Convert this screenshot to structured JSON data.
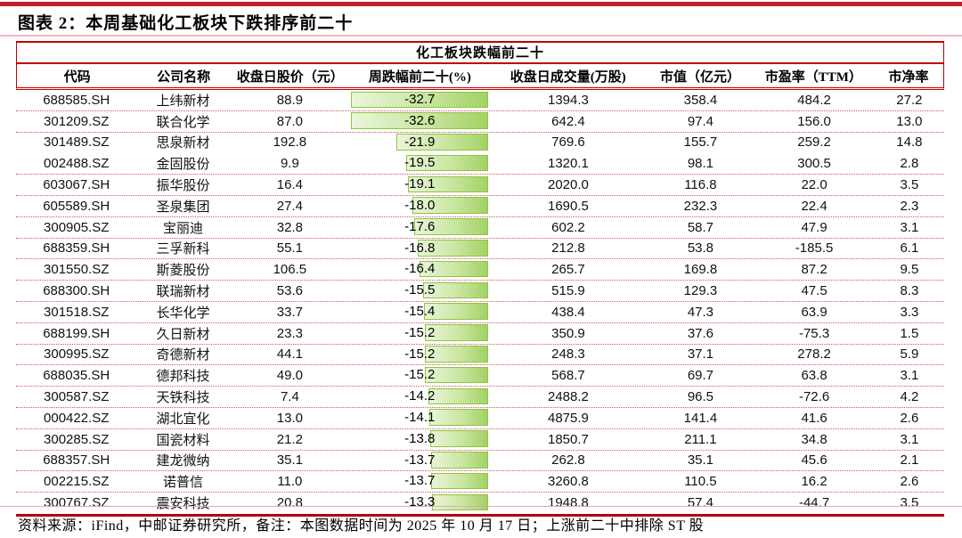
{
  "figure": {
    "title": "图表 2：本周基础化工板块下跌排序前二十",
    "footer": "资料来源：iFind，中邮证券研究所，备注：本图数据时间为 2025 年 10 月 17 日；上涨前二十中排除 ST 股"
  },
  "table": {
    "band_title": "化工板块跌幅前二十",
    "columns": [
      "代码",
      "公司名称",
      "收盘日股价（元）",
      "周跌幅前二十(%)",
      "收盘日成交量(万股)",
      "市值（亿元）",
      "市盈率（TTM）",
      "市净率"
    ],
    "bar_max_abs_decline": 32.7,
    "rows": [
      {
        "code": "688585.SH",
        "name": "上纬新材",
        "price": "88.9",
        "decline": "-32.7",
        "volume": "1394.3",
        "mktcap": "358.4",
        "pe": "484.2",
        "pb": "27.2"
      },
      {
        "code": "301209.SZ",
        "name": "联合化学",
        "price": "87.0",
        "decline": "-32.6",
        "volume": "642.4",
        "mktcap": "97.4",
        "pe": "156.0",
        "pb": "13.0"
      },
      {
        "code": "301489.SZ",
        "name": "思泉新材",
        "price": "192.8",
        "decline": "-21.9",
        "volume": "769.6",
        "mktcap": "155.7",
        "pe": "259.2",
        "pb": "14.8"
      },
      {
        "code": "002488.SZ",
        "name": "金固股份",
        "price": "9.9",
        "decline": "-19.5",
        "volume": "1320.1",
        "mktcap": "98.1",
        "pe": "300.5",
        "pb": "2.8"
      },
      {
        "code": "603067.SH",
        "name": "振华股份",
        "price": "16.4",
        "decline": "-19.1",
        "volume": "2020.0",
        "mktcap": "116.8",
        "pe": "22.0",
        "pb": "3.5"
      },
      {
        "code": "605589.SH",
        "name": "圣泉集团",
        "price": "27.4",
        "decline": "-18.0",
        "volume": "1690.5",
        "mktcap": "232.3",
        "pe": "22.4",
        "pb": "2.3"
      },
      {
        "code": "300905.SZ",
        "name": "宝丽迪",
        "price": "32.8",
        "decline": "-17.6",
        "volume": "602.2",
        "mktcap": "58.7",
        "pe": "47.9",
        "pb": "3.1"
      },
      {
        "code": "688359.SH",
        "name": "三孚新科",
        "price": "55.1",
        "decline": "-16.8",
        "volume": "212.8",
        "mktcap": "53.8",
        "pe": "-185.5",
        "pb": "6.1"
      },
      {
        "code": "301550.SZ",
        "name": "斯菱股份",
        "price": "106.5",
        "decline": "-16.4",
        "volume": "265.7",
        "mktcap": "169.8",
        "pe": "87.2",
        "pb": "9.5"
      },
      {
        "code": "688300.SH",
        "name": "联瑞新材",
        "price": "53.6",
        "decline": "-15.5",
        "volume": "515.9",
        "mktcap": "129.3",
        "pe": "47.5",
        "pb": "8.3"
      },
      {
        "code": "301518.SZ",
        "name": "长华化学",
        "price": "33.7",
        "decline": "-15.4",
        "volume": "438.4",
        "mktcap": "47.3",
        "pe": "63.9",
        "pb": "3.3"
      },
      {
        "code": "688199.SH",
        "name": "久日新材",
        "price": "23.3",
        "decline": "-15.2",
        "volume": "350.9",
        "mktcap": "37.6",
        "pe": "-75.3",
        "pb": "1.5"
      },
      {
        "code": "300995.SZ",
        "name": "奇德新材",
        "price": "44.1",
        "decline": "-15.2",
        "volume": "248.3",
        "mktcap": "37.1",
        "pe": "278.2",
        "pb": "5.9"
      },
      {
        "code": "688035.SH",
        "name": "德邦科技",
        "price": "49.0",
        "decline": "-15.2",
        "volume": "568.7",
        "mktcap": "69.7",
        "pe": "63.8",
        "pb": "3.1"
      },
      {
        "code": "300587.SZ",
        "name": "天铁科技",
        "price": "7.4",
        "decline": "-14.2",
        "volume": "2488.2",
        "mktcap": "96.5",
        "pe": "-72.6",
        "pb": "4.2"
      },
      {
        "code": "000422.SZ",
        "name": "湖北宜化",
        "price": "13.0",
        "decline": "-14.1",
        "volume": "4875.9",
        "mktcap": "141.4",
        "pe": "41.6",
        "pb": "2.6"
      },
      {
        "code": "300285.SZ",
        "name": "国瓷材料",
        "price": "21.2",
        "decline": "-13.8",
        "volume": "1850.7",
        "mktcap": "211.1",
        "pe": "34.8",
        "pb": "3.1"
      },
      {
        "code": "688357.SH",
        "name": "建龙微纳",
        "price": "35.1",
        "decline": "-13.7",
        "volume": "262.8",
        "mktcap": "35.1",
        "pe": "45.6",
        "pb": "2.1"
      },
      {
        "code": "002215.SZ",
        "name": "诺普信",
        "price": "11.0",
        "decline": "-13.7",
        "volume": "3260.8",
        "mktcap": "110.5",
        "pe": "16.2",
        "pb": "2.6"
      },
      {
        "code": "300767.SZ",
        "name": "震安科技",
        "price": "20.8",
        "decline": "-13.3",
        "volume": "1948.8",
        "mktcap": "57.4",
        "pe": "-44.7",
        "pb": "3.5"
      }
    ]
  },
  "colors": {
    "accent_red": "#c00000",
    "top_rule_red": "#c5202e",
    "bottom_rule_red": "#b20000",
    "dotted_divider": "#cf5b5b",
    "light_rule_pink": "#f0b6ba",
    "bar_fill_light": "#eaf5da",
    "bar_fill_dark": "#a3d165",
    "bar_border_green": "#8cc63f"
  }
}
